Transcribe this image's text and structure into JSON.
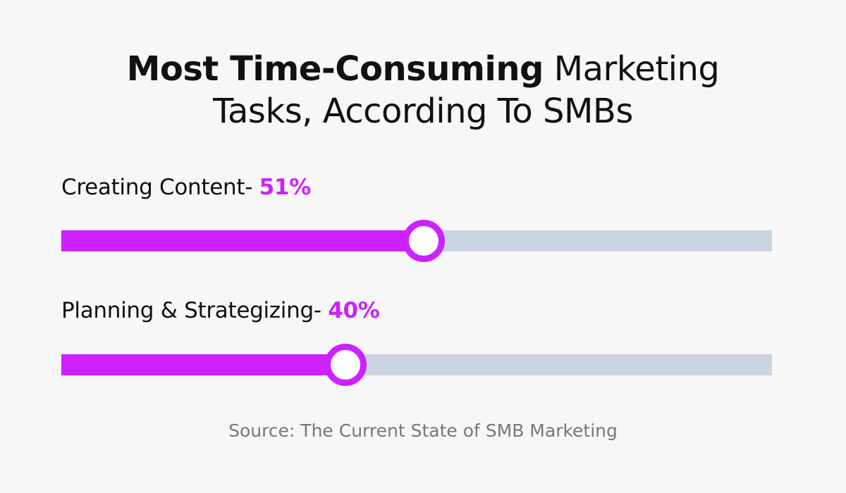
{
  "title": {
    "bold": "Most Time-Consuming",
    "regular_line1": " Marketing",
    "regular_line2": "Tasks, According To SMBs"
  },
  "chart_data": {
    "type": "bar",
    "orientation": "horizontal",
    "categories": [
      "Creating Content",
      "Planning & Strategizing"
    ],
    "values": [
      51,
      40
    ],
    "value_labels": [
      "51%",
      "40%"
    ],
    "ylim": [
      0,
      100
    ],
    "colors": {
      "fill": "#cc22ff",
      "track": "#c9d5e1",
      "knob": "#ffffff"
    }
  },
  "items": [
    {
      "label": "Creating Content- ",
      "pct": "51%"
    },
    {
      "label": "Planning & Strategizing- ",
      "pct": "40%"
    }
  ],
  "source": "Source: The Current State of SMB Marketing"
}
